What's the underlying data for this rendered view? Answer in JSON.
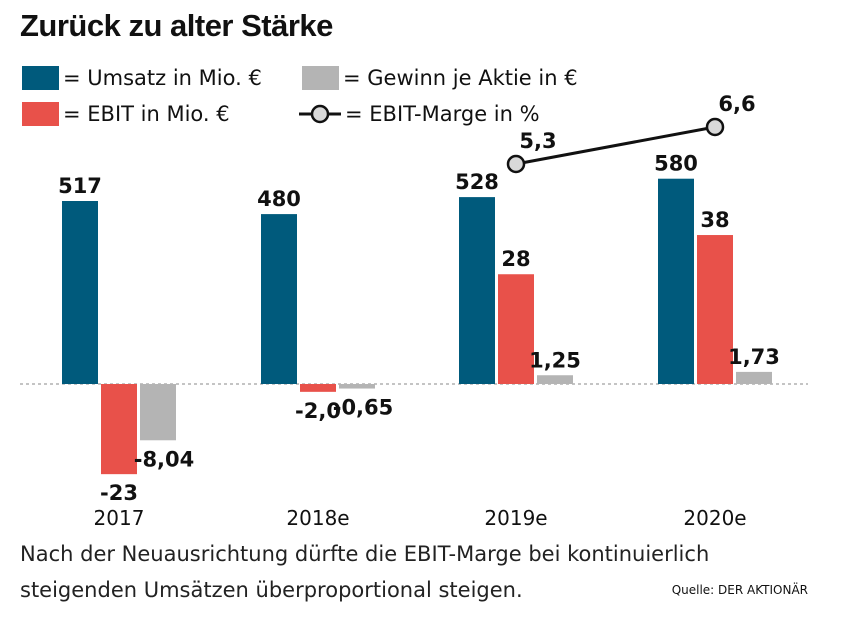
{
  "title": "Zurück zu alter Stärke",
  "legend": {
    "umsatz": "= Umsatz in Mio. €",
    "gewinn": "= Gewinn je Aktie in €",
    "ebit": "= EBIT in Mio. €",
    "marge": "= EBIT-Marge in %"
  },
  "caption": "Nach der Neuausrichtung dürfte die EBIT-Marge bei kontinuierlich steigenden Umsätzen überproportional steigen.",
  "source": "Quelle: DER AKTIONÄR",
  "colors": {
    "umsatz": "#005a7c",
    "ebit": "#e8514a",
    "gewinn": "#b4b4b4",
    "line": "#111111",
    "marker": "#d9d9d9"
  },
  "chart_data": {
    "type": "bar",
    "categories": [
      "2017",
      "2018e",
      "2019e",
      "2020e"
    ],
    "series": [
      {
        "name": "Umsatz in Mio. €",
        "values": [
          517,
          480,
          528,
          580
        ],
        "labels": [
          "517",
          "480",
          "528",
          "580"
        ]
      },
      {
        "name": "EBIT in Mio. €",
        "values": [
          -23,
          -2.0,
          28,
          38
        ],
        "labels": [
          "-23",
          "-2,0",
          "28",
          "38"
        ]
      },
      {
        "name": "Gewinn je Aktie in €",
        "values": [
          -8.04,
          -0.65,
          1.25,
          1.73
        ],
        "labels": [
          "-8,04",
          "-0,65",
          "1,25",
          "1,73"
        ]
      },
      {
        "name": "EBIT-Marge in %",
        "type": "line",
        "values": [
          null,
          null,
          5.3,
          6.6
        ],
        "labels": [
          "",
          "",
          "5,3",
          "6,6"
        ]
      }
    ]
  }
}
